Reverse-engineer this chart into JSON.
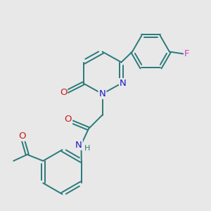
{
  "bg_color": "#e8e8e8",
  "bond_color": "#2a7a7a",
  "N_color": "#1a1acc",
  "O_color": "#cc1a1a",
  "F_color": "#cc44bb",
  "lw": 1.4,
  "fs": 8.5,
  "xlim": [
    0,
    10
  ],
  "ylim": [
    0,
    10
  ]
}
